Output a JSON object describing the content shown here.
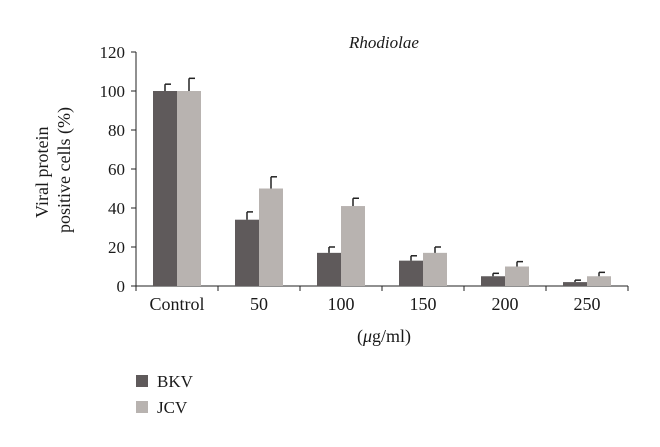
{
  "chart_data": {
    "type": "bar",
    "title": "Rhodiolae",
    "xlabel": "(μg/ml)",
    "xlabel_parts": {
      "open": "(",
      "mu": "μ",
      "rest": "g/ml)"
    },
    "ylabel_lines": [
      "Viral protein",
      "positive cells (%)"
    ],
    "ylabel": "Viral protein positive cells (%)",
    "ylim": [
      0,
      120
    ],
    "yticks": [
      0,
      20,
      40,
      60,
      80,
      100,
      120
    ],
    "ytick_labels": [
      "0",
      "20",
      "40",
      "60",
      "80",
      "100",
      "120"
    ],
    "categories": [
      "Control",
      "50",
      "100",
      "150",
      "200",
      "250"
    ],
    "series": [
      {
        "name": "BKV",
        "color": "#5f5a5b",
        "values": [
          100,
          34,
          17,
          13,
          5,
          2
        ],
        "errors": [
          3.5,
          4,
          3,
          2.5,
          1.5,
          1
        ]
      },
      {
        "name": "JCV",
        "color": "#b8b3b0",
        "values": [
          100,
          50,
          41,
          17,
          10,
          5
        ],
        "errors": [
          6.5,
          6,
          4,
          3,
          2.5,
          2
        ]
      }
    ],
    "legend_position": "bottom-left",
    "grid": false
  }
}
